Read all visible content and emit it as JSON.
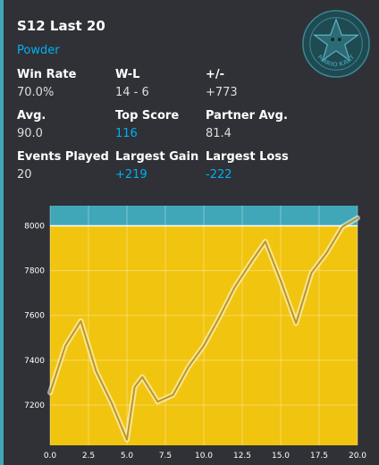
{
  "header": {
    "title": "S12 Last 20",
    "subtitle": "Powder"
  },
  "stats": {
    "win_rate": {
      "label": "Win Rate",
      "value": "70.0%"
    },
    "wl": {
      "label": "W-L",
      "value": "14 - 6"
    },
    "plus_minus": {
      "label": "+/-",
      "value": "+773"
    },
    "avg": {
      "label": "Avg.",
      "value": "90.0"
    },
    "top_score": {
      "label": "Top Score",
      "value": "116"
    },
    "partner_avg": {
      "label": "Partner Avg.",
      "value": "81.4"
    },
    "events_played": {
      "label": "Events Played",
      "value": "20"
    },
    "largest_gain": {
      "label": "Largest Gain",
      "value": "+219"
    },
    "largest_loss": {
      "label": "Largest Loss",
      "value": "-222"
    }
  },
  "logo": {
    "text": "MARIO KART",
    "icon": "star-emblem-icon"
  },
  "colors": {
    "background": "#2f3136",
    "accent": "#3fa7b8",
    "link": "#00aff4",
    "band_above": "#3fa7b8",
    "band_below": "#f1c40f"
  },
  "chart_data": {
    "type": "line",
    "title": "",
    "xlabel": "",
    "ylabel": "",
    "x": [
      0,
      1,
      2,
      3,
      4,
      5,
      5.5,
      6,
      7,
      8,
      9,
      10,
      11,
      12,
      13,
      14,
      15,
      16,
      17,
      18,
      19,
      20
    ],
    "y": [
      7255,
      7465,
      7575,
      7350,
      7210,
      7045,
      7280,
      7325,
      7215,
      7245,
      7370,
      7465,
      7590,
      7725,
      7830,
      7930,
      7755,
      7565,
      7790,
      7880,
      7995,
      8035
    ],
    "xlim": [
      0,
      20
    ],
    "ylim": [
      7020,
      8090
    ],
    "xticks": [
      0,
      2.5,
      5,
      7.5,
      10,
      12.5,
      15,
      17.5,
      20
    ],
    "xtick_labels": [
      "0.0",
      "2.5",
      "5.0",
      "7.5",
      "10.0",
      "12.5",
      "15.0",
      "17.5",
      "20.0"
    ],
    "yticks": [
      7200,
      7400,
      7600,
      7800,
      8000
    ],
    "ytick_labels": [
      "7200",
      "7400",
      "7600",
      "7800",
      "8000"
    ],
    "band_threshold": 8000,
    "grid": true
  }
}
